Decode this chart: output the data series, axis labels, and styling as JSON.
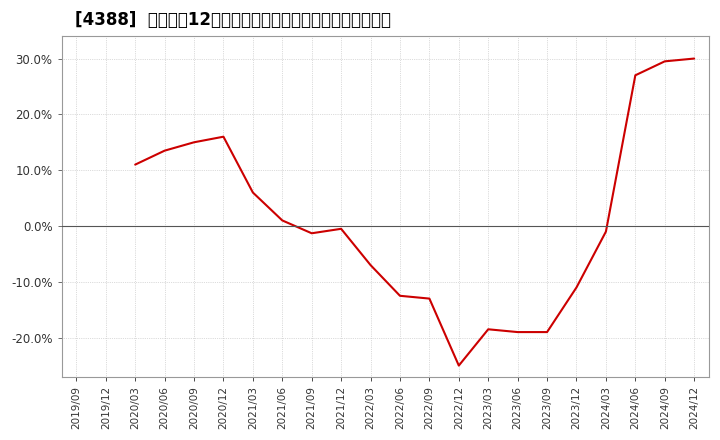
{
  "title": "[4388]  売上高の12か月移動合計の対前年同期増減率の推移",
  "line_color": "#cc0000",
  "background_color": "#ffffff",
  "grid_color": "#bbbbbb",
  "x_labels": [
    "2019/09",
    "2019/12",
    "2020/03",
    "2020/06",
    "2020/09",
    "2020/12",
    "2021/03",
    "2021/06",
    "2021/09",
    "2021/12",
    "2022/03",
    "2022/06",
    "2022/09",
    "2022/12",
    "2023/03",
    "2023/06",
    "2023/09",
    "2023/12",
    "2024/03",
    "2024/06",
    "2024/09",
    "2024/12"
  ],
  "y_values": [
    null,
    null,
    0.11,
    0.135,
    0.15,
    0.16,
    0.06,
    0.01,
    -0.013,
    -0.005,
    -0.07,
    -0.125,
    -0.13,
    -0.25,
    -0.185,
    -0.19,
    -0.19,
    -0.11,
    -0.01,
    0.27,
    0.295,
    0.3
  ],
  "ylim": [
    -0.27,
    0.34
  ],
  "yticks": [
    -0.2,
    -0.1,
    0.0,
    0.1,
    0.2,
    0.3
  ],
  "title_fontsize": 12
}
